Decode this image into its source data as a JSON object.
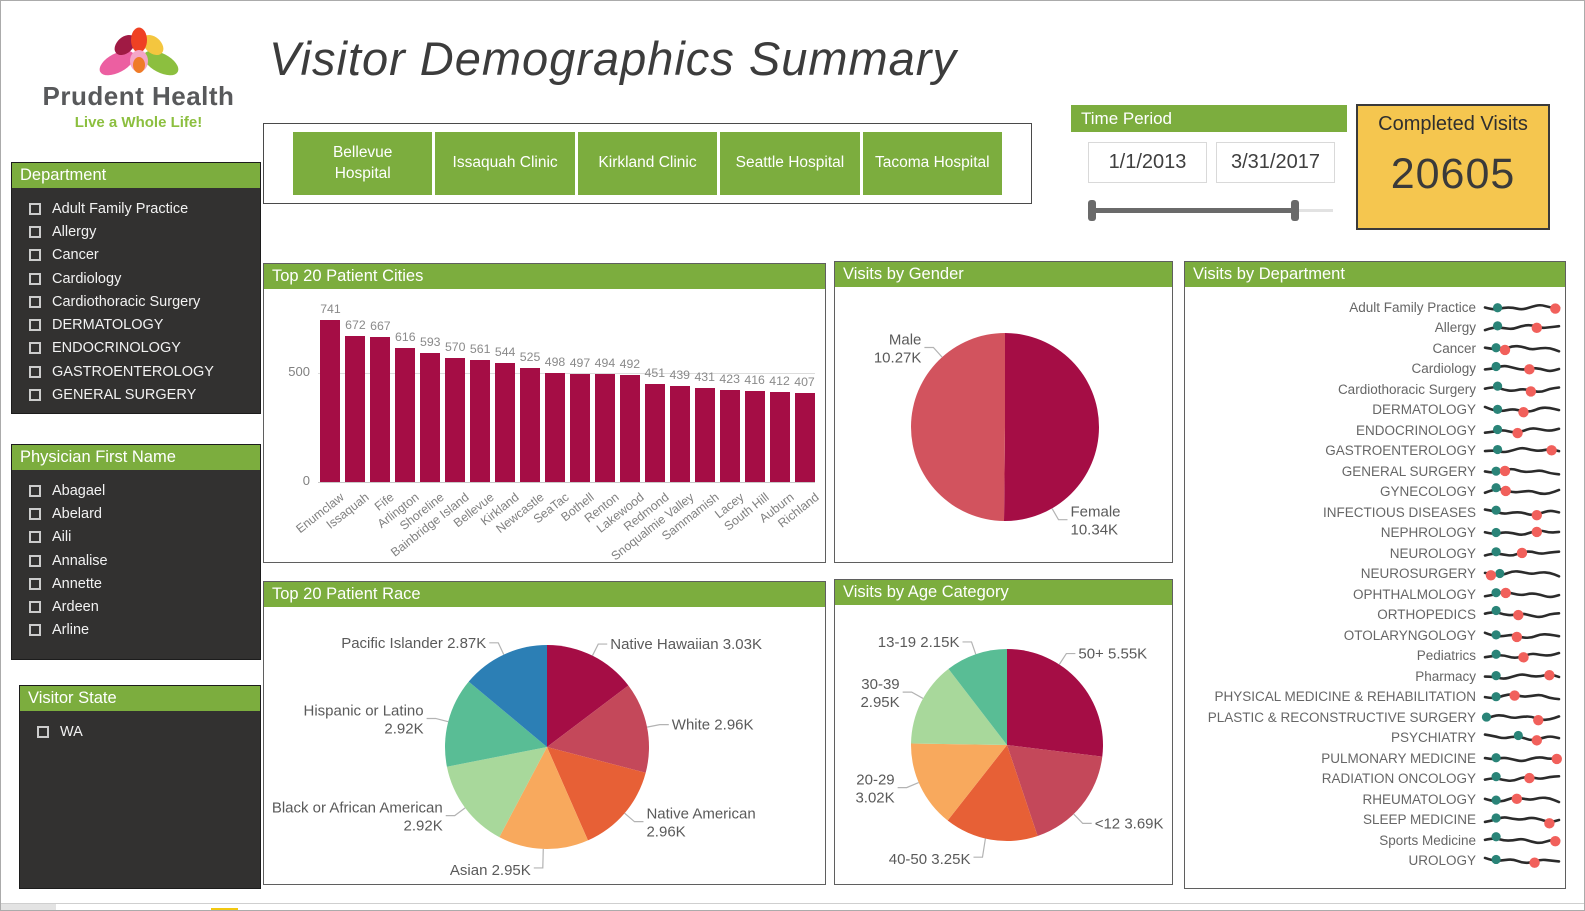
{
  "brand": {
    "name": "Prudent Health",
    "tagline": "Live a Whole Life!"
  },
  "title": "Visitor Demographics Summary",
  "hospital_buttons": [
    "Bellevue Hospital",
    "Issaquah Clinic",
    "Kirkland Clinic",
    "Seattle Hospital",
    "Tacoma Hospital"
  ],
  "time_period": {
    "label": "Time Period",
    "start": "1/1/2013",
    "end": "3/31/2017"
  },
  "completed_visits": {
    "label": "Completed Visits",
    "value": "20605"
  },
  "filters": [
    {
      "title": "Department",
      "items": [
        "Adult Family Practice",
        "Allergy",
        "Cancer",
        "Cardiology",
        "Cardiothoracic Surgery",
        "DERMATOLOGY",
        "ENDOCRINOLOGY",
        "GASTROENTEROLOGY",
        "GENERAL SURGERY"
      ]
    },
    {
      "title": "Physician First Name",
      "items": [
        "Abagael",
        "Abelard",
        "Aili",
        "Annalise",
        "Annette",
        "Ardeen",
        "Arline"
      ]
    },
    {
      "title": "Visitor State",
      "items": [
        "WA"
      ]
    }
  ],
  "colors": {
    "green": "#7cad3e",
    "maroon": "#a50d45",
    "yellow_card": "#f5c64f",
    "spark_line": "#2b2b2b",
    "teal_dot": "#2a8478",
    "red_dot": "#f1605b"
  },
  "chart_data": [
    {
      "id": "cities",
      "type": "bar",
      "title": "Top 20 Patient Cities",
      "categories": [
        "Enumclaw",
        "Issaquah",
        "Fife",
        "Arlington",
        "Shoreline",
        "Bainbridge Island",
        "Bellevue",
        "Kirkland",
        "Newcastle",
        "SeaTac",
        "Bothell",
        "Renton",
        "Lakewood",
        "Redmond",
        "Snoqualmie Valley",
        "Sammamish",
        "Lacey",
        "South Hill",
        "Auburn",
        "Richland"
      ],
      "values": [
        741,
        672,
        667,
        616,
        593,
        570,
        561,
        544,
        525,
        498,
        497,
        494,
        492,
        451,
        439,
        431,
        423,
        416,
        412,
        407
      ],
      "yticks": [
        0,
        500
      ],
      "ylim": [
        0,
        780
      ],
      "bar_color": "#a50d45",
      "grid": true
    },
    {
      "id": "gender",
      "type": "pie",
      "title": "Visits by Gender",
      "slices": [
        {
          "label": "Female",
          "value": 10.34,
          "label_lines": [
            "Female",
            "10.34K"
          ],
          "color": "#a50d45",
          "label_angle": 150
        },
        {
          "label": "Male",
          "value": 10.27,
          "label_lines": [
            "Male",
            "10.27K"
          ],
          "color": "#d2535e",
          "label_angle": 318
        }
      ]
    },
    {
      "id": "race",
      "type": "pie",
      "title": "Top 20 Patient Race",
      "slices": [
        {
          "label": "Native Hawaiian",
          "value": 3.03,
          "label_lines": [
            "Native Hawaiian 3.03K"
          ],
          "color": "#a50d45"
        },
        {
          "label": "White",
          "value": 2.96,
          "label_lines": [
            "White 2.96K"
          ],
          "color": "#c4485a"
        },
        {
          "label": "Native American",
          "value": 2.96,
          "label_lines": [
            "Native American",
            "2.96K"
          ],
          "color": "#e76036"
        },
        {
          "label": "Asian",
          "value": 2.95,
          "label_lines": [
            "Asian 2.95K"
          ],
          "color": "#f8a95d"
        },
        {
          "label": "Black or African American",
          "value": 2.92,
          "label_lines": [
            "Black or African American",
            "2.92K"
          ],
          "color": "#a8d89b"
        },
        {
          "label": "Hispanic or Latino",
          "value": 2.92,
          "label_lines": [
            "Hispanic or Latino",
            "2.92K"
          ],
          "color": "#59bd95"
        },
        {
          "label": "Pacific Islander",
          "value": 2.87,
          "label_lines": [
            "Pacific Islander 2.87K"
          ],
          "color": "#2c7fb5"
        }
      ]
    },
    {
      "id": "age",
      "type": "pie",
      "title": "Visits by Age Category",
      "slices": [
        {
          "label": "50+",
          "value": 5.55,
          "label_lines": [
            "50+ 5.55K"
          ],
          "color": "#a50d45",
          "label_angle": 33
        },
        {
          "label": "<12",
          "value": 3.69,
          "label_lines": [
            "<12 3.69K"
          ],
          "color": "#c4485a",
          "label_angle": 136
        },
        {
          "label": "40-50",
          "value": 3.25,
          "label_lines": [
            "40-50 3.25K"
          ],
          "color": "#e76036",
          "label_angle": 193
        },
        {
          "label": "20-29",
          "value": 3.02,
          "label_lines": [
            "20-29",
            "3.02K"
          ],
          "color": "#f8a95d",
          "label_angle": 247
        },
        {
          "label": "30-39",
          "value": 2.95,
          "label_lines": [
            "30-39",
            "2.95K"
          ],
          "color": "#a8d89b",
          "label_angle": 299
        },
        {
          "label": "13-19",
          "value": 2.15,
          "label_lines": [
            "13-19 2.15K"
          ],
          "color": "#59bd95",
          "label_angle": 341
        }
      ]
    },
    {
      "id": "departments",
      "type": "sparklines",
      "title": "Visits by Department",
      "rows": [
        {
          "label": "Adult Family Practice",
          "teal_dot": 0.17,
          "red_dot": 0.95
        },
        {
          "label": "Allergy",
          "teal_dot": 0.17,
          "red_dot": 0.7
        },
        {
          "label": "Cancer",
          "teal_dot": 0.15,
          "red_dot": 0.27
        },
        {
          "label": "Cardiology",
          "teal_dot": 0.15,
          "red_dot": 0.6
        },
        {
          "label": "Cardiothoracic Surgery",
          "teal_dot": 0.17,
          "red_dot": 0.62
        },
        {
          "label": "DERMATOLOGY",
          "teal_dot": 0.17,
          "red_dot": 0.52
        },
        {
          "label": "ENDOCRINOLOGY",
          "teal_dot": 0.17,
          "red_dot": 0.44
        },
        {
          "label": "GASTROENTEROLOGY",
          "teal_dot": 0.17,
          "red_dot": 0.9
        },
        {
          "label": "GENERAL SURGERY",
          "teal_dot": 0.15,
          "red_dot": 0.27
        },
        {
          "label": "GYNECOLOGY",
          "teal_dot": 0.15,
          "red_dot": 0.28
        },
        {
          "label": "INFECTIOUS DISEASES",
          "teal_dot": 0.15,
          "red_dot": 0.7
        },
        {
          "label": "NEPHROLOGY",
          "teal_dot": 0.15,
          "red_dot": 0.7
        },
        {
          "label": "NEUROLOGY",
          "teal_dot": 0.15,
          "red_dot": 0.5
        },
        {
          "label": "NEUROSURGERY",
          "teal_dot": 0.2,
          "red_dot": 0.08
        },
        {
          "label": "OPHTHALMOLOGY",
          "teal_dot": 0.15,
          "red_dot": 0.28
        },
        {
          "label": "ORTHOPEDICS",
          "teal_dot": 0.15,
          "red_dot": 0.45
        },
        {
          "label": "OTOLARYNGOLOGY",
          "teal_dot": 0.15,
          "red_dot": 0.43
        },
        {
          "label": "Pediatrics",
          "teal_dot": 0.15,
          "red_dot": 0.52
        },
        {
          "label": "Pharmacy",
          "teal_dot": 0.15,
          "red_dot": 0.87
        },
        {
          "label": "PHYSICAL MEDICINE & REHABILITATION",
          "teal_dot": 0.15,
          "red_dot": 0.4
        },
        {
          "label": "PLASTIC & RECONSTRUCTIVE SURGERY",
          "teal_dot": 0.02,
          "red_dot": 0.72
        },
        {
          "label": "PSYCHIATRY",
          "teal_dot": 0.45,
          "red_dot": 0.7
        },
        {
          "label": "PULMONARY MEDICINE",
          "teal_dot": 0.15,
          "red_dot": 0.97
        },
        {
          "label": "RADIATION ONCOLOGY",
          "teal_dot": 0.15,
          "red_dot": 0.6
        },
        {
          "label": "RHEUMATOLOGY",
          "teal_dot": 0.15,
          "red_dot": 0.43
        },
        {
          "label": "SLEEP MEDICINE",
          "teal_dot": 0.15,
          "red_dot": 0.87
        },
        {
          "label": "Sports Medicine",
          "teal_dot": 0.15,
          "red_dot": 0.95
        },
        {
          "label": "UROLOGY",
          "teal_dot": 0.15,
          "red_dot": 0.67
        }
      ]
    }
  ]
}
